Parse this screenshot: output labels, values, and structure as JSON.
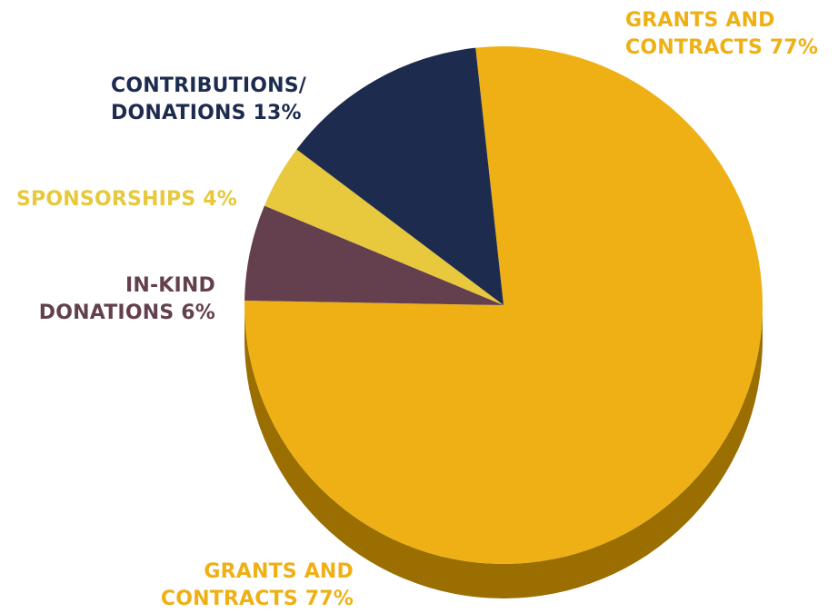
{
  "chart_data": {
    "type": "pie",
    "style": "3d",
    "slices": [
      {
        "label": "GRANTS AND CONTRACTS",
        "value": 77,
        "value_text": "77%",
        "color": "#EEB014",
        "side_color": "#9A6E00"
      },
      {
        "label": "IN-KIND DONATIONS",
        "value": 6,
        "value_text": "6%",
        "color": "#64404E",
        "side_color": "#3E2630"
      },
      {
        "label": "SPONSORSHIPS",
        "value": 4,
        "value_text": "4%",
        "color": "#E8C83C",
        "side_color": "#9C8420"
      },
      {
        "label": "CONTRIBUTIONS/ DONATIONS",
        "value": 13,
        "value_text": "13%",
        "color": "#1D2C4E",
        "side_color": "#0F1830"
      }
    ]
  },
  "labels": {
    "grants_top": {
      "line1": "GRANTS AND",
      "line2": "CONTRACTS 77%"
    },
    "contributions": {
      "line1": "CONTRIBUTIONS/",
      "line2": "DONATIONS 13%"
    },
    "sponsorships": {
      "line1": "SPONSORSHIPS 4%"
    },
    "inkind": {
      "line1": "IN-KIND",
      "line2": "DONATIONS 6%"
    },
    "grants_bottom": {
      "line1": "GRANTS AND",
      "line2": "CONTRACTS 77%"
    }
  }
}
